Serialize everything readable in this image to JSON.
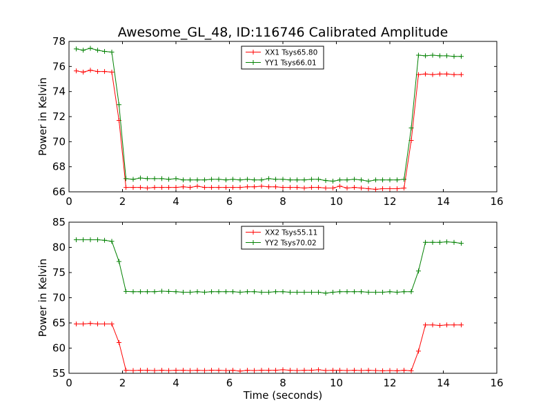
{
  "figure": {
    "title": "Awesome_GL_48, ID:116746 Calibrated Amplitude"
  },
  "chart_data": [
    {
      "type": "line",
      "title": "Awesome_GL_48, ID:116746 Calibrated Amplitude",
      "xlabel": "",
      "ylabel": "Power in Kelvin",
      "xlim": [
        0,
        16
      ],
      "ylim": [
        66,
        78
      ],
      "xticks": [
        "0",
        "2",
        "4",
        "6",
        "8",
        "10",
        "12",
        "14",
        "16"
      ],
      "yticks": [
        "66",
        "68",
        "70",
        "72",
        "74",
        "76",
        "78"
      ],
      "grid": false,
      "legend": "top-center",
      "x": [
        0.27,
        0.53,
        0.8,
        1.07,
        1.33,
        1.6,
        1.87,
        2.13,
        2.4,
        2.67,
        2.93,
        3.2,
        3.47,
        3.73,
        4.0,
        4.27,
        4.53,
        4.8,
        5.07,
        5.33,
        5.6,
        5.87,
        6.13,
        6.4,
        6.67,
        6.93,
        7.2,
        7.47,
        7.73,
        8.0,
        8.27,
        8.53,
        8.8,
        9.07,
        9.33,
        9.6,
        9.87,
        10.13,
        10.4,
        10.67,
        10.93,
        11.2,
        11.47,
        11.73,
        12.0,
        12.27,
        12.53,
        12.8,
        13.07,
        13.33,
        13.6,
        13.87,
        14.13,
        14.4,
        14.67
      ],
      "series": [
        {
          "name": "XX1 Tsys65.80",
          "color": "#ff0000",
          "values": [
            75.65,
            75.55,
            75.7,
            75.6,
            75.6,
            75.55,
            71.7,
            66.35,
            66.35,
            66.35,
            66.3,
            66.35,
            66.35,
            66.35,
            66.35,
            66.4,
            66.35,
            66.45,
            66.35,
            66.35,
            66.35,
            66.35,
            66.35,
            66.35,
            66.4,
            66.4,
            66.45,
            66.4,
            66.4,
            66.35,
            66.35,
            66.35,
            66.3,
            66.35,
            66.35,
            66.3,
            66.3,
            66.45,
            66.3,
            66.35,
            66.3,
            66.25,
            66.2,
            66.25,
            66.25,
            66.25,
            66.3,
            70.1,
            75.35,
            75.4,
            75.35,
            75.4,
            75.4,
            75.35,
            75.35
          ]
        },
        {
          "name": "YY1 Tsys66.01",
          "color": "#008000",
          "values": [
            77.4,
            77.3,
            77.45,
            77.3,
            77.2,
            77.15,
            72.95,
            67.05,
            67.0,
            67.1,
            67.05,
            67.05,
            67.05,
            67.0,
            67.05,
            66.95,
            66.95,
            66.95,
            66.95,
            67.0,
            67.0,
            66.95,
            67.0,
            66.95,
            67.0,
            66.95,
            66.95,
            67.05,
            67.0,
            67.0,
            66.95,
            66.95,
            66.95,
            67.0,
            67.0,
            66.9,
            66.85,
            66.95,
            66.95,
            67.0,
            66.95,
            66.85,
            66.95,
            66.95,
            66.95,
            66.95,
            67.0,
            71.1,
            76.9,
            76.85,
            76.9,
            76.85,
            76.85,
            76.8,
            76.8
          ]
        }
      ]
    },
    {
      "type": "line",
      "title": "",
      "xlabel": "Time (seconds)",
      "ylabel": "Power in Kelvin",
      "xlim": [
        0,
        16
      ],
      "ylim": [
        55,
        85
      ],
      "xticks": [
        "0",
        "2",
        "4",
        "6",
        "8",
        "10",
        "12",
        "14",
        "16"
      ],
      "yticks": [
        "55",
        "60",
        "65",
        "70",
        "75",
        "80",
        "85"
      ],
      "grid": false,
      "legend": "top-center",
      "x": [
        0.27,
        0.53,
        0.8,
        1.07,
        1.33,
        1.6,
        1.87,
        2.13,
        2.4,
        2.67,
        2.93,
        3.2,
        3.47,
        3.73,
        4.0,
        4.27,
        4.53,
        4.8,
        5.07,
        5.33,
        5.6,
        5.87,
        6.13,
        6.4,
        6.67,
        6.93,
        7.2,
        7.47,
        7.73,
        8.0,
        8.27,
        8.53,
        8.8,
        9.07,
        9.33,
        9.6,
        9.87,
        10.13,
        10.4,
        10.67,
        10.93,
        11.2,
        11.47,
        11.73,
        12.0,
        12.27,
        12.53,
        12.8,
        13.07,
        13.33,
        13.6,
        13.87,
        14.13,
        14.4,
        14.67
      ],
      "series": [
        {
          "name": "XX2 Tsys55.11",
          "color": "#ff0000",
          "values": [
            64.8,
            64.8,
            64.9,
            64.8,
            64.8,
            64.8,
            61.1,
            55.6,
            55.55,
            55.6,
            55.6,
            55.55,
            55.6,
            55.55,
            55.6,
            55.6,
            55.55,
            55.6,
            55.55,
            55.6,
            55.6,
            55.55,
            55.6,
            55.45,
            55.6,
            55.55,
            55.6,
            55.6,
            55.6,
            55.7,
            55.6,
            55.55,
            55.6,
            55.6,
            55.7,
            55.55,
            55.6,
            55.6,
            55.55,
            55.6,
            55.55,
            55.6,
            55.55,
            55.5,
            55.55,
            55.5,
            55.6,
            55.5,
            59.4,
            64.6,
            64.6,
            64.5,
            64.6,
            64.6,
            64.6
          ]
        },
        {
          "name": "YY2 Tsys70.02",
          "color": "#008000",
          "values": [
            81.5,
            81.5,
            81.5,
            81.5,
            81.4,
            81.2,
            77.2,
            71.25,
            71.2,
            71.2,
            71.2,
            71.2,
            71.3,
            71.25,
            71.2,
            71.1,
            71.1,
            71.2,
            71.1,
            71.2,
            71.2,
            71.2,
            71.2,
            71.1,
            71.2,
            71.2,
            71.1,
            71.1,
            71.2,
            71.2,
            71.1,
            71.1,
            71.1,
            71.1,
            71.1,
            70.9,
            71.1,
            71.2,
            71.2,
            71.2,
            71.2,
            71.1,
            71.1,
            71.1,
            71.2,
            71.1,
            71.2,
            71.2,
            75.3,
            81.0,
            81.0,
            81.0,
            81.1,
            81.0,
            80.8
          ]
        }
      ]
    }
  ]
}
